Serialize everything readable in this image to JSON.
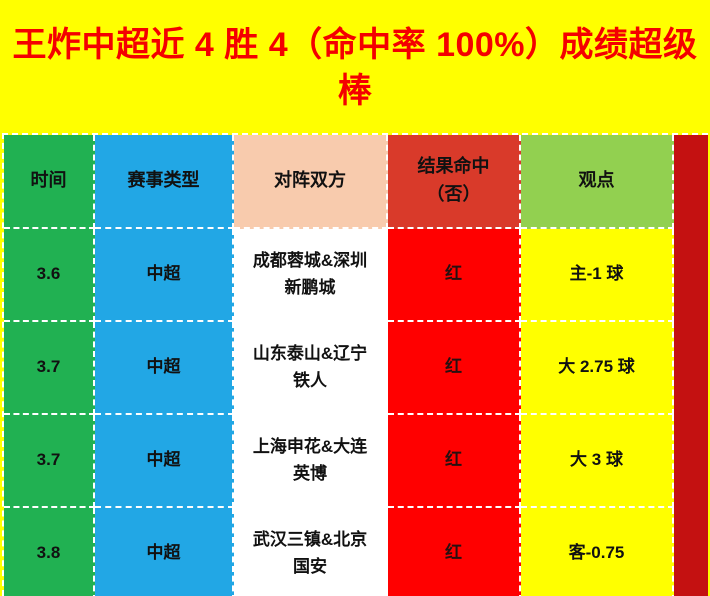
{
  "banner": {
    "title": "王炸中超近 4 胜 4（命中率 100%）成绩超级棒"
  },
  "table": {
    "columns": [
      "时间",
      "赛事类型",
      "对阵双方",
      "结果命中\n（否）",
      "观点"
    ],
    "rows": [
      {
        "time": "3.6",
        "league": "中超",
        "match": "成都蓉城&深圳\n新鹏城",
        "result": "红",
        "view": "主-1 球"
      },
      {
        "time": "3.7",
        "league": "中超",
        "match": "山东泰山&辽宁\n铁人",
        "result": "红",
        "view": "大 2.75 球"
      },
      {
        "time": "3.7",
        "league": "中超",
        "match": "上海申花&大连\n英博",
        "result": "红",
        "view": "大 3 球"
      },
      {
        "time": "3.8",
        "league": "中超",
        "match": "武汉三镇&北京\n国安",
        "result": "红",
        "view": "客-0.75"
      }
    ]
  },
  "chart_data": {
    "type": "table",
    "title": "王炸中超近 4 胜 4（命中率 100%）成绩超级棒",
    "columns": [
      "时间",
      "赛事类型",
      "对阵双方",
      "结果命中（否）",
      "观点"
    ],
    "rows": [
      [
        "3.6",
        "中超",
        "成都蓉城&深圳新鹏城",
        "红",
        "主-1 球"
      ],
      [
        "3.7",
        "中超",
        "山东泰山&辽宁铁人",
        "红",
        "大 2.75 球"
      ],
      [
        "3.7",
        "中超",
        "上海申花&大连英博",
        "红",
        "大 3 球"
      ],
      [
        "3.8",
        "中超",
        "武汉三镇&北京国安",
        "红",
        "客-0.75"
      ]
    ]
  },
  "colors": {
    "banner-bg": "#FFFF00",
    "banner-text": "#F40000",
    "c-time": "#21B152",
    "c-league": "#22A7E5",
    "c-match-h": "#F8CBAD",
    "c-match": "#FFFFFF",
    "c-result-h": "#D93A2A",
    "c-result": "#FF0000",
    "c-view-h": "#92D050",
    "c-view": "#FFFF00",
    "c-strip": "#C41111",
    "border": "#FFFFFF"
  }
}
